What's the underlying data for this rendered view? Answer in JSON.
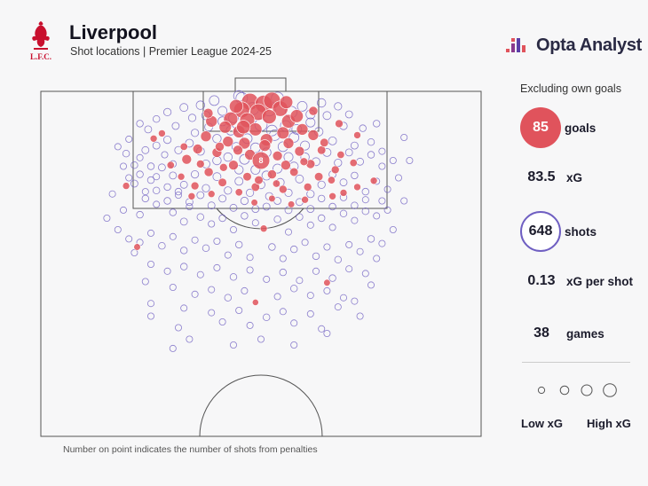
{
  "header": {
    "title": "Liverpool",
    "subtitle": "Shot locations | Premier League 2024-25",
    "crest_text": "L.F.C.",
    "brand": "Opta Analyst"
  },
  "footnote": "Number on point indicates the number of shots from penalties",
  "stats": {
    "heading": "Excluding own goals",
    "goals": {
      "value": "85",
      "label": "goals"
    },
    "xg": {
      "value": "83.5",
      "label": "xG"
    },
    "shots": {
      "value": "648",
      "label": "shots"
    },
    "xg_per_shot": {
      "value": "0.13",
      "label": "xG per shot"
    },
    "games": {
      "value": "38",
      "label": "games"
    }
  },
  "legend": {
    "low_label": "Low xG",
    "high_label": "High xG",
    "sizes_xg": [
      0.03,
      0.1,
      0.2,
      0.35
    ]
  },
  "colors": {
    "goal": "#e0535c",
    "shot": "#6f5fc2",
    "line": "#555555",
    "accent": "#e0535c"
  },
  "chart_data": {
    "type": "scatter",
    "title": "Shot locations | Premier League 2024-25",
    "x_axis": "pitch width (yards from left touchline, 0-80)",
    "y_axis": "distance from goal line (yards, 0-60)",
    "penalty_label": "8",
    "penalty_spot": {
      "x": 40,
      "y": 12,
      "shots": 8
    },
    "goals": [
      [
        38,
        1.8,
        0.7
      ],
      [
        40.5,
        2.2,
        0.75
      ],
      [
        42,
        1.6,
        0.7
      ],
      [
        36.5,
        3.2,
        0.6
      ],
      [
        39.5,
        3.6,
        0.65
      ],
      [
        43.5,
        3.0,
        0.55
      ],
      [
        34.5,
        4.8,
        0.45
      ],
      [
        37.5,
        5.0,
        0.5
      ],
      [
        41.5,
        4.4,
        0.45
      ],
      [
        45,
        5.2,
        0.4
      ],
      [
        46.5,
        4.3,
        0.35
      ],
      [
        33.5,
        6.2,
        0.3
      ],
      [
        31,
        5.2,
        0.25
      ],
      [
        36,
        7.0,
        0.3
      ],
      [
        39,
        6.6,
        0.35
      ],
      [
        44,
        7.2,
        0.3
      ],
      [
        47.5,
        6.6,
        0.25
      ],
      [
        30,
        7.8,
        0.2
      ],
      [
        49.5,
        7.6,
        0.2
      ],
      [
        34,
        8.7,
        0.2
      ],
      [
        37,
        9.0,
        0.25
      ],
      [
        41,
        8.4,
        0.3
      ],
      [
        45,
        9.0,
        0.2
      ],
      [
        28.5,
        10.0,
        0.15
      ],
      [
        32,
        10.6,
        0.15
      ],
      [
        38,
        11.0,
        0.2
      ],
      [
        43,
        11.2,
        0.15
      ],
      [
        47,
        10.4,
        0.15
      ],
      [
        51,
        10.2,
        0.1
      ],
      [
        26.5,
        11.8,
        0.15
      ],
      [
        35,
        12.8,
        0.15
      ],
      [
        40,
        12.0,
        0.76
      ],
      [
        44.5,
        12.8,
        0.15
      ],
      [
        49,
        12.6,
        0.12
      ],
      [
        30.5,
        14.0,
        0.12
      ],
      [
        37.5,
        14.8,
        0.1
      ],
      [
        42,
        14.4,
        0.12
      ],
      [
        46,
        14.0,
        0.1
      ],
      [
        50.5,
        14.8,
        0.1
      ],
      [
        53.5,
        13.6,
        0.08
      ],
      [
        33,
        15.8,
        0.1
      ],
      [
        39,
        16.6,
        0.1
      ],
      [
        44,
        17.0,
        0.08
      ],
      [
        48.5,
        16.6,
        0.08
      ],
      [
        28,
        16.4,
        0.08
      ],
      [
        55,
        17.6,
        0.05
      ],
      [
        57.5,
        16.6,
        0.05
      ],
      [
        53,
        18.2,
        0.05
      ],
      [
        20.5,
        8.2,
        0.05
      ],
      [
        57.5,
        7.6,
        0.05
      ],
      [
        22,
        7.3,
        0.05
      ],
      [
        54.5,
        11.0,
        0.06
      ],
      [
        60.5,
        15.5,
        0.05
      ],
      [
        15.5,
        16.4,
        0.05
      ],
      [
        17.5,
        27.0,
        0.04
      ],
      [
        40.5,
        23.8,
        0.05
      ],
      [
        52,
        33.2,
        0.04
      ],
      [
        39,
        36.6,
        0.03
      ],
      [
        36,
        17.5,
        0.06
      ],
      [
        48,
        18.8,
        0.05
      ],
      [
        31,
        17.8,
        0.05
      ],
      [
        42,
        18.6,
        0.04
      ],
      [
        25.5,
        14.8,
        0.05
      ],
      [
        35.5,
        2.6,
        0.4
      ],
      [
        44.6,
        1.9,
        0.35
      ],
      [
        32.5,
        9.6,
        0.12
      ],
      [
        51.5,
        8.9,
        0.1
      ],
      [
        26,
        9.6,
        0.06
      ],
      [
        38.8,
        19.3,
        0.04
      ],
      [
        45.5,
        19.6,
        0.04
      ],
      [
        29,
        12.6,
        0.08
      ],
      [
        47.8,
        12.2,
        0.08
      ],
      [
        40.7,
        9.4,
        0.25
      ],
      [
        35.8,
        10.2,
        0.15
      ],
      [
        42.8,
        16.0,
        0.06
      ],
      [
        30.4,
        3.8,
        0.15
      ],
      [
        49.5,
        3.4,
        0.12
      ],
      [
        33.2,
        13.2,
        0.08
      ],
      [
        52.8,
        15.4,
        0.06
      ],
      [
        27.4,
        18.2,
        0.05
      ],
      [
        54.2,
        5.6,
        0.08
      ],
      [
        23.6,
        12.8,
        0.06
      ],
      [
        56.8,
        12.4,
        0.06
      ],
      [
        39.6,
        15.4,
        0.1
      ],
      [
        36.8,
        6.2,
        0.4
      ]
    ],
    "shots": [
      [
        16,
        8.3,
        0.03
      ],
      [
        14,
        9.6,
        0.03
      ],
      [
        15.5,
        10.8,
        0.04
      ],
      [
        18,
        11.5,
        0.03
      ],
      [
        20,
        13,
        0.04
      ],
      [
        22.5,
        11,
        0.03
      ],
      [
        24,
        12.6,
        0.04
      ],
      [
        21,
        14.8,
        0.03
      ],
      [
        17,
        16,
        0.05
      ],
      [
        19,
        17.4,
        0.03
      ],
      [
        23,
        16.6,
        0.04
      ],
      [
        25,
        18,
        0.03
      ],
      [
        13,
        17.8,
        0.03
      ],
      [
        15,
        20.6,
        0.03
      ],
      [
        18,
        21.4,
        0.04
      ],
      [
        21,
        19.6,
        0.03
      ],
      [
        24,
        21,
        0.04
      ],
      [
        27,
        20,
        0.03
      ],
      [
        26,
        22.6,
        0.05
      ],
      [
        29,
        21.8,
        0.04
      ],
      [
        31,
        23,
        0.03
      ],
      [
        33,
        22,
        0.04
      ],
      [
        35,
        24,
        0.03
      ],
      [
        37,
        21.6,
        0.04
      ],
      [
        39,
        22.8,
        0.03
      ],
      [
        43,
        22.2,
        0.04
      ],
      [
        45,
        24.4,
        0.03
      ],
      [
        47,
        21.8,
        0.04
      ],
      [
        49,
        23.2,
        0.03
      ],
      [
        51,
        22,
        0.04
      ],
      [
        53,
        23.6,
        0.03
      ],
      [
        55,
        21.2,
        0.04
      ],
      [
        57,
        22.4,
        0.03
      ],
      [
        59,
        20.8,
        0.04
      ],
      [
        61,
        21.6,
        0.03
      ],
      [
        63,
        20.6,
        0.03
      ],
      [
        14,
        24,
        0.03
      ],
      [
        16,
        25.6,
        0.03
      ],
      [
        18,
        26.2,
        0.03
      ],
      [
        20,
        24.6,
        0.03
      ],
      [
        22,
        26.8,
        0.04
      ],
      [
        24,
        25.2,
        0.03
      ],
      [
        26,
        27.6,
        0.04
      ],
      [
        28,
        25.8,
        0.03
      ],
      [
        30,
        27.2,
        0.04
      ],
      [
        32,
        26,
        0.03
      ],
      [
        34,
        28.4,
        0.03
      ],
      [
        36,
        26.6,
        0.04
      ],
      [
        38,
        28.8,
        0.03
      ],
      [
        42,
        27,
        0.04
      ],
      [
        44,
        29,
        0.03
      ],
      [
        46,
        27.4,
        0.04
      ],
      [
        48,
        26.2,
        0.03
      ],
      [
        50,
        28.6,
        0.04
      ],
      [
        52,
        27,
        0.03
      ],
      [
        54,
        29.2,
        0.04
      ],
      [
        56,
        26.6,
        0.03
      ],
      [
        58,
        27.8,
        0.03
      ],
      [
        60,
        25.6,
        0.04
      ],
      [
        62,
        26.4,
        0.03
      ],
      [
        20,
        30,
        0.03
      ],
      [
        23,
        31.2,
        0.03
      ],
      [
        26,
        30.4,
        0.04
      ],
      [
        29,
        31.8,
        0.03
      ],
      [
        32,
        30.6,
        0.03
      ],
      [
        35,
        32.2,
        0.04
      ],
      [
        38,
        31,
        0.03
      ],
      [
        41,
        32.6,
        0.03
      ],
      [
        44,
        31.4,
        0.04
      ],
      [
        47,
        32.8,
        0.03
      ],
      [
        50,
        31.2,
        0.03
      ],
      [
        53,
        32.4,
        0.04
      ],
      [
        56,
        30.8,
        0.03
      ],
      [
        59,
        31.6,
        0.03
      ],
      [
        24,
        34,
        0.03
      ],
      [
        28,
        35.2,
        0.03
      ],
      [
        31,
        34.4,
        0.03
      ],
      [
        34,
        35.8,
        0.04
      ],
      [
        37,
        34.6,
        0.03
      ],
      [
        43,
        35.6,
        0.03
      ],
      [
        46,
        34.2,
        0.04
      ],
      [
        49,
        35.4,
        0.03
      ],
      [
        52,
        34.6,
        0.03
      ],
      [
        55,
        35.8,
        0.03
      ],
      [
        26,
        37.6,
        0.03
      ],
      [
        31,
        38.4,
        0.03
      ],
      [
        36,
        38,
        0.03
      ],
      [
        41,
        39.2,
        0.04
      ],
      [
        44,
        38.2,
        0.03
      ],
      [
        49,
        38.6,
        0.03
      ],
      [
        54,
        37.4,
        0.03
      ],
      [
        60,
        33.6,
        0.03
      ],
      [
        19,
        33,
        0.03
      ],
      [
        33,
        40,
        0.03
      ],
      [
        38,
        40.6,
        0.03
      ],
      [
        46,
        40.2,
        0.03
      ],
      [
        25,
        41,
        0.03
      ],
      [
        51,
        41.2,
        0.03
      ],
      [
        20,
        36.8,
        0.03
      ],
      [
        57,
        36.4,
        0.03
      ],
      [
        18,
        5.6,
        0.04
      ],
      [
        19.5,
        6.6,
        0.05
      ],
      [
        21,
        4.8,
        0.04
      ],
      [
        23,
        3.6,
        0.06
      ],
      [
        24.5,
        6,
        0.05
      ],
      [
        26,
        2.8,
        0.08
      ],
      [
        27.5,
        4.6,
        0.06
      ],
      [
        29,
        2.4,
        0.1
      ],
      [
        28,
        7.2,
        0.06
      ],
      [
        30.5,
        6.2,
        0.08
      ],
      [
        31.5,
        1.6,
        0.15
      ],
      [
        33,
        3.4,
        0.12
      ],
      [
        32,
        8.2,
        0.1
      ],
      [
        34.5,
        6.8,
        0.12
      ],
      [
        35.5,
        9.6,
        0.1
      ],
      [
        36.5,
        1.2,
        0.25
      ],
      [
        37.5,
        8.2,
        0.15
      ],
      [
        39,
        9.8,
        0.15
      ],
      [
        40,
        5.8,
        0.3
      ],
      [
        41,
        10.6,
        0.12
      ],
      [
        42.5,
        7.6,
        0.2
      ],
      [
        43,
        1.2,
        0.3
      ],
      [
        44,
        9.6,
        0.15
      ],
      [
        45.5,
        3.6,
        0.25
      ],
      [
        46,
        8,
        0.15
      ],
      [
        47.5,
        2.6,
        0.15
      ],
      [
        48,
        9.4,
        0.12
      ],
      [
        49,
        5.4,
        0.12
      ],
      [
        50.5,
        7,
        0.1
      ],
      [
        51,
        2,
        0.1
      ],
      [
        52,
        4.2,
        0.08
      ],
      [
        53,
        8.6,
        0.08
      ],
      [
        54,
        2.6,
        0.06
      ],
      [
        55,
        6,
        0.06
      ],
      [
        56,
        4,
        0.05
      ],
      [
        57,
        9.4,
        0.05
      ],
      [
        58.5,
        6.4,
        0.04
      ],
      [
        60,
        8.8,
        0.04
      ],
      [
        61,
        5.6,
        0.04
      ],
      [
        62,
        10.4,
        0.03
      ],
      [
        17,
        12.8,
        0.04
      ],
      [
        19,
        10.2,
        0.05
      ],
      [
        21,
        9.4,
        0.05
      ],
      [
        23,
        8.4,
        0.06
      ],
      [
        25,
        10.2,
        0.06
      ],
      [
        27,
        9,
        0.08
      ],
      [
        29,
        10.4,
        0.08
      ],
      [
        30,
        12.6,
        0.08
      ],
      [
        32,
        12,
        0.1
      ],
      [
        34,
        11.4,
        0.1
      ],
      [
        36,
        13.6,
        0.1
      ],
      [
        37,
        11.8,
        0.15
      ],
      [
        39,
        13.6,
        0.12
      ],
      [
        41,
        14.6,
        0.12
      ],
      [
        43,
        13.4,
        0.12
      ],
      [
        45,
        11.4,
        0.12
      ],
      [
        46,
        13,
        0.1
      ],
      [
        48,
        11.4,
        0.1
      ],
      [
        50,
        12.2,
        0.08
      ],
      [
        52,
        10.6,
        0.08
      ],
      [
        54,
        12.4,
        0.06
      ],
      [
        56,
        10.6,
        0.05
      ],
      [
        58,
        12.2,
        0.05
      ],
      [
        60,
        11,
        0.04
      ],
      [
        62,
        13,
        0.03
      ],
      [
        18,
        14.4,
        0.04
      ],
      [
        20,
        15.4,
        0.04
      ],
      [
        22,
        13.2,
        0.05
      ],
      [
        24,
        14.6,
        0.05
      ],
      [
        26,
        16.2,
        0.05
      ],
      [
        28,
        14.4,
        0.06
      ],
      [
        30,
        16.8,
        0.06
      ],
      [
        32,
        14.8,
        0.08
      ],
      [
        34,
        17.2,
        0.06
      ],
      [
        36,
        15.6,
        0.08
      ],
      [
        38,
        17.6,
        0.06
      ],
      [
        40,
        16.2,
        0.08
      ],
      [
        41.5,
        18.2,
        0.06
      ],
      [
        43.5,
        15.8,
        0.08
      ],
      [
        45,
        17.6,
        0.06
      ],
      [
        47,
        15.2,
        0.08
      ],
      [
        49,
        17.8,
        0.06
      ],
      [
        51,
        16.2,
        0.06
      ],
      [
        53,
        14.4,
        0.05
      ],
      [
        55,
        15.8,
        0.05
      ],
      [
        57,
        14.6,
        0.04
      ],
      [
        59,
        17.4,
        0.04
      ],
      [
        61,
        15.6,
        0.03
      ],
      [
        63,
        17,
        0.03
      ],
      [
        19,
        18.6,
        0.04
      ],
      [
        21,
        17.2,
        0.04
      ],
      [
        23,
        19,
        0.04
      ],
      [
        25,
        17.4,
        0.04
      ],
      [
        27,
        19.2,
        0.05
      ],
      [
        29,
        18,
        0.05
      ],
      [
        31,
        19.8,
        0.05
      ],
      [
        33,
        18.6,
        0.05
      ],
      [
        35,
        20.2,
        0.05
      ],
      [
        37,
        19,
        0.06
      ],
      [
        39,
        20.4,
        0.05
      ],
      [
        41,
        20,
        0.05
      ],
      [
        43,
        19,
        0.05
      ],
      [
        45,
        20.6,
        0.05
      ],
      [
        47,
        19.2,
        0.05
      ],
      [
        49,
        20.4,
        0.05
      ],
      [
        51,
        18.6,
        0.04
      ],
      [
        53,
        20,
        0.04
      ],
      [
        55,
        18.4,
        0.04
      ],
      [
        57,
        19.8,
        0.04
      ],
      [
        59,
        18.8,
        0.03
      ],
      [
        35,
        4.6,
        0.15
      ],
      [
        38.5,
        3,
        0.3
      ],
      [
        41.5,
        3.2,
        0.3
      ],
      [
        44.5,
        6,
        0.2
      ],
      [
        33,
        5.2,
        0.12
      ],
      [
        36,
        0.8,
        0.2
      ],
      [
        42,
        6.8,
        0.2
      ],
      [
        46.5,
        6.6,
        0.15
      ],
      [
        30,
        4.2,
        0.1
      ],
      [
        49,
        4,
        0.12
      ],
      [
        64,
        12,
        0.03
      ],
      [
        65,
        15,
        0.03
      ],
      [
        16,
        15,
        0.03
      ],
      [
        62,
        19,
        0.03
      ],
      [
        66,
        8,
        0.03
      ],
      [
        15,
        13,
        0.03
      ],
      [
        66,
        19,
        0.03
      ],
      [
        12,
        22,
        0.03
      ],
      [
        64,
        24,
        0.03
      ],
      [
        67,
        12,
        0.03
      ],
      [
        20,
        39,
        0.03
      ],
      [
        27,
        43,
        0.03
      ],
      [
        35,
        44,
        0.03
      ],
      [
        40,
        43,
        0.03
      ],
      [
        46,
        44,
        0.03
      ],
      [
        52,
        42,
        0.03
      ],
      [
        58,
        39,
        0.03
      ],
      [
        17,
        28,
        0.03
      ],
      [
        61,
        29,
        0.03
      ],
      [
        24,
        44.6,
        0.03
      ]
    ]
  }
}
